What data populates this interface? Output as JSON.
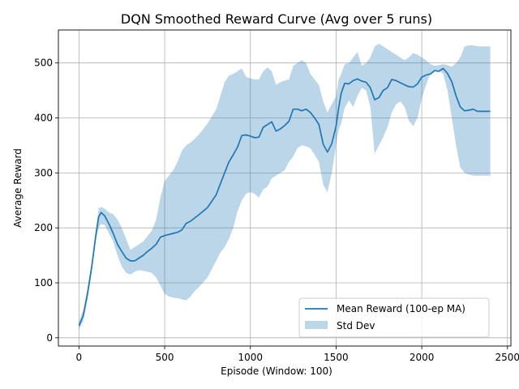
{
  "chart_data": {
    "type": "line",
    "title": "DQN Smoothed Reward Curve (Avg over 5 runs)",
    "xlabel": "Episode (Window: 100)",
    "ylabel": "Average Reward",
    "xlim": [
      -120,
      2520
    ],
    "ylim": [
      -15,
      560
    ],
    "xticks": [
      0,
      500,
      1000,
      1500,
      2000,
      2500
    ],
    "yticks": [
      0,
      100,
      200,
      300,
      400,
      500
    ],
    "grid": true,
    "legend_position": "lower-right",
    "series": [
      {
        "name": "Mean Reward (100-ep MA)",
        "kind": "line",
        "color": "#1f77b4",
        "x": [
          0,
          25,
          50,
          75,
          100,
          115,
          130,
          150,
          175,
          200,
          225,
          250,
          275,
          300,
          325,
          350,
          375,
          400,
          425,
          450,
          475,
          500,
          525,
          550,
          575,
          600,
          625,
          650,
          675,
          700,
          750,
          800,
          825,
          850,
          875,
          900,
          925,
          950,
          975,
          1000,
          1025,
          1050,
          1075,
          1100,
          1125,
          1150,
          1175,
          1200,
          1225,
          1250,
          1275,
          1300,
          1325,
          1350,
          1375,
          1400,
          1425,
          1450,
          1475,
          1500,
          1515,
          1530,
          1550,
          1575,
          1600,
          1625,
          1650,
          1675,
          1700,
          1725,
          1750,
          1775,
          1800,
          1825,
          1850,
          1875,
          1900,
          1925,
          1950,
          1975,
          2000,
          2025,
          2050,
          2075,
          2100,
          2125,
          2150,
          2175,
          2200,
          2225,
          2250,
          2275,
          2300,
          2325,
          2350,
          2375,
          2400
        ],
        "y": [
          22,
          40,
          80,
          130,
          190,
          220,
          228,
          222,
          207,
          190,
          170,
          157,
          145,
          140,
          140,
          145,
          150,
          157,
          163,
          170,
          183,
          186,
          188,
          190,
          192,
          196,
          208,
          212,
          218,
          224,
          237,
          260,
          280,
          300,
          320,
          333,
          347,
          368,
          369,
          367,
          364,
          365,
          383,
          388,
          393,
          376,
          380,
          386,
          394,
          416,
          416,
          413,
          416,
          410,
          400,
          388,
          352,
          338,
          353,
          385,
          418,
          445,
          463,
          462,
          468,
          471,
          467,
          465,
          455,
          433,
          437,
          450,
          455,
          470,
          468,
          464,
          460,
          457,
          456,
          462,
          474,
          478,
          480,
          486,
          485,
          490,
          481,
          466,
          440,
          420,
          413,
          414,
          416,
          412,
          412,
          412,
          412
        ]
      },
      {
        "name": "Std Dev",
        "kind": "band",
        "color": "#1f77b4",
        "opacity": 0.3,
        "x": [
          0,
          25,
          50,
          75,
          100,
          115,
          130,
          150,
          175,
          200,
          225,
          250,
          275,
          300,
          325,
          350,
          375,
          400,
          425,
          450,
          475,
          500,
          525,
          550,
          575,
          600,
          625,
          650,
          675,
          700,
          750,
          800,
          825,
          850,
          875,
          900,
          925,
          950,
          975,
          1000,
          1025,
          1050,
          1075,
          1100,
          1125,
          1150,
          1175,
          1200,
          1225,
          1250,
          1275,
          1300,
          1325,
          1350,
          1375,
          1400,
          1425,
          1450,
          1475,
          1500,
          1515,
          1530,
          1550,
          1575,
          1600,
          1625,
          1650,
          1675,
          1700,
          1725,
          1750,
          1775,
          1800,
          1825,
          1850,
          1875,
          1900,
          1925,
          1950,
          1975,
          2000,
          2025,
          2050,
          2075,
          2100,
          2125,
          2150,
          2175,
          2200,
          2225,
          2250,
          2275,
          2300,
          2325,
          2350,
          2375,
          2400
        ],
        "lower": [
          15,
          30,
          70,
          120,
          180,
          200,
          207,
          205,
          190,
          175,
          150,
          130,
          118,
          115,
          120,
          123,
          122,
          120,
          118,
          110,
          95,
          80,
          75,
          73,
          72,
          70,
          68,
          75,
          85,
          92,
          110,
          140,
          155,
          165,
          180,
          200,
          230,
          250,
          262,
          265,
          262,
          255,
          270,
          275,
          290,
          295,
          300,
          305,
          320,
          330,
          345,
          350,
          348,
          345,
          333,
          320,
          278,
          265,
          300,
          350,
          378,
          390,
          418,
          432,
          420,
          440,
          455,
          450,
          420,
          335,
          350,
          365,
          383,
          410,
          425,
          430,
          420,
          395,
          385,
          400,
          435,
          460,
          480,
          486,
          487,
          480,
          450,
          400,
          350,
          310,
          300,
          297,
          295,
          295,
          295,
          295,
          295
        ],
        "upper": [
          30,
          50,
          90,
          140,
          200,
          235,
          238,
          235,
          228,
          225,
          215,
          200,
          180,
          160,
          165,
          170,
          175,
          185,
          195,
          215,
          255,
          285,
          295,
          305,
          320,
          340,
          350,
          355,
          362,
          370,
          390,
          415,
          440,
          465,
          477,
          480,
          485,
          490,
          475,
          472,
          470,
          470,
          485,
          492,
          485,
          460,
          465,
          468,
          470,
          495,
          500,
          505,
          500,
          480,
          470,
          460,
          430,
          410,
          425,
          440,
          470,
          480,
          498,
          500,
          510,
          520,
          495,
          500,
          510,
          530,
          535,
          530,
          525,
          520,
          515,
          510,
          505,
          510,
          518,
          515,
          510,
          505,
          498,
          495,
          496,
          498,
          496,
          493,
          500,
          510,
          530,
          532,
          532,
          530,
          530,
          530,
          530
        ]
      }
    ]
  }
}
